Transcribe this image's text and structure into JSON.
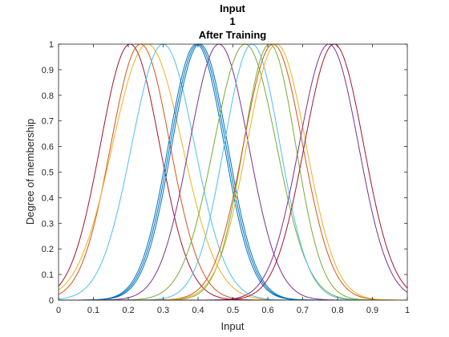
{
  "chart_data": {
    "type": "line",
    "title_lines": [
      "Input",
      "1",
      "After Training"
    ],
    "xlabel": "Input",
    "ylabel": "Degree of membership",
    "xlim": [
      0,
      1
    ],
    "ylim": [
      0,
      1
    ],
    "xticks": [
      "0",
      "0.1",
      "0.2",
      "0.3",
      "0.4",
      "0.5",
      "0.6",
      "0.7",
      "0.8",
      "0.9",
      "1"
    ],
    "yticks": [
      "0",
      "0.1",
      "0.2",
      "0.3",
      "0.4",
      "0.5",
      "0.6",
      "0.7",
      "0.8",
      "0.9",
      "1"
    ],
    "grid": false,
    "curve_kind": "gaussian membership functions",
    "series": [
      {
        "center": 0.205,
        "sigma": 0.085,
        "color": "#A2142F"
      },
      {
        "center": 0.235,
        "sigma": 0.085,
        "color": "#D95319"
      },
      {
        "center": 0.255,
        "sigma": 0.1,
        "color": "#EDB120"
      },
      {
        "center": 0.3,
        "sigma": 0.09,
        "color": "#4DBEEE"
      },
      {
        "center": 0.395,
        "sigma": 0.08,
        "color": "#0072BD"
      },
      {
        "center": 0.4,
        "sigma": 0.08,
        "color": "#0072BD"
      },
      {
        "center": 0.405,
        "sigma": 0.08,
        "color": "#0072BD"
      },
      {
        "center": 0.46,
        "sigma": 0.085,
        "color": "#7E2F8E"
      },
      {
        "center": 0.535,
        "sigma": 0.09,
        "color": "#77AC30"
      },
      {
        "center": 0.555,
        "sigma": 0.08,
        "color": "#4DBEEE"
      },
      {
        "center": 0.605,
        "sigma": 0.075,
        "color": "#77AC30"
      },
      {
        "center": 0.615,
        "sigma": 0.085,
        "color": "#D95319"
      },
      {
        "center": 0.625,
        "sigma": 0.085,
        "color": "#EDB120"
      },
      {
        "center": 0.775,
        "sigma": 0.085,
        "color": "#7E2F8E"
      },
      {
        "center": 0.79,
        "sigma": 0.085,
        "color": "#A2142F"
      }
    ]
  }
}
